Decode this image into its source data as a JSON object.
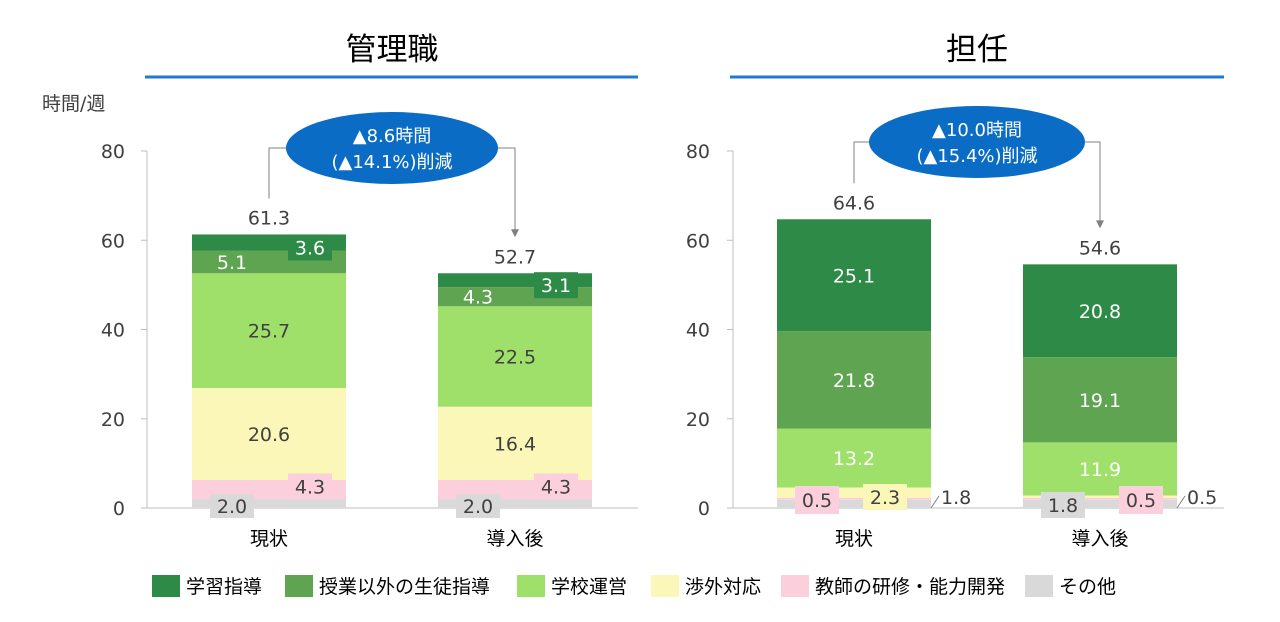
{
  "colors": {
    "series": [
      "#2e8b47",
      "#5fa450",
      "#9fe06a",
      "#fbf7b8",
      "#fbd0dc",
      "#d9d9d9"
    ],
    "title_rule": "#1f7bd2",
    "callout": "#0a6cc4",
    "axis": "#bfbfbf",
    "text": "#404040",
    "dark_label_text": "#ffffff"
  },
  "ylabel": "時間/週",
  "chart_data": [
    {
      "type": "bar",
      "stacked": true,
      "title": "管理職",
      "categories": [
        "現状",
        "導入後"
      ],
      "ylim": [
        0,
        80
      ],
      "yticks": [
        0,
        20,
        40,
        60,
        80
      ],
      "series": [
        {
          "name": "その他",
          "values": [
            2.0,
            2.0
          ],
          "labels": [
            "2.0",
            "2.0"
          ]
        },
        {
          "name": "教師の研修・能力開発",
          "values": [
            4.3,
            4.3
          ],
          "labels": [
            "4.3",
            "4.3"
          ]
        },
        {
          "name": "渉外対応",
          "values": [
            20.6,
            16.4
          ],
          "labels": [
            "20.6",
            "16.4"
          ]
        },
        {
          "name": "学校運営",
          "values": [
            25.7,
            22.5
          ],
          "labels": [
            "25.7",
            "22.5"
          ]
        },
        {
          "name": "授業以外の生徒指導",
          "values": [
            5.1,
            4.3
          ],
          "labels": [
            "5.1",
            "4.3"
          ]
        },
        {
          "name": "学習指導",
          "values": [
            3.6,
            3.1
          ],
          "labels": [
            "3.6",
            "3.1"
          ]
        }
      ],
      "totals": [
        "61.3",
        "52.7"
      ],
      "callout": [
        "▲8.6時間",
        "(▲14.1%)削減"
      ]
    },
    {
      "type": "bar",
      "stacked": true,
      "title": "担任",
      "categories": [
        "現状",
        "導入後"
      ],
      "ylim": [
        0,
        80
      ],
      "yticks": [
        0,
        20,
        40,
        60,
        80
      ],
      "series": [
        {
          "name": "その他",
          "values": [
            1.8,
            1.8
          ],
          "labels": [
            "1.8",
            "1.8"
          ]
        },
        {
          "name": "教師の研修・能力開発",
          "values": [
            0.5,
            0.5
          ],
          "labels": [
            "0.5",
            "0.5"
          ]
        },
        {
          "name": "渉外対応",
          "values": [
            2.3,
            0.5
          ],
          "labels": [
            "2.3",
            "0.5"
          ]
        },
        {
          "name": "学校運営",
          "values": [
            13.2,
            11.9
          ],
          "labels": [
            "13.2",
            "11.9"
          ]
        },
        {
          "name": "授業以外の生徒指導",
          "values": [
            21.8,
            19.1
          ],
          "labels": [
            "21.8",
            "19.1"
          ]
        },
        {
          "name": "学習指導",
          "values": [
            25.1,
            20.8
          ],
          "labels": [
            "25.1",
            "20.8"
          ]
        }
      ],
      "totals": [
        "64.6",
        "54.6"
      ],
      "callout": [
        "▲10.0時間",
        "(▲15.4%)削減"
      ]
    }
  ],
  "legend": [
    {
      "label": "学習指導",
      "color": "#2e8b47"
    },
    {
      "label": "授業以外の生徒指導",
      "color": "#5fa450"
    },
    {
      "label": "学校運営",
      "color": "#9fe06a"
    },
    {
      "label": "渉外対応",
      "color": "#fbf7b8"
    },
    {
      "label": "教師の研修・能力開発",
      "color": "#fbd0dc"
    },
    {
      "label": "その他",
      "color": "#d9d9d9"
    }
  ]
}
